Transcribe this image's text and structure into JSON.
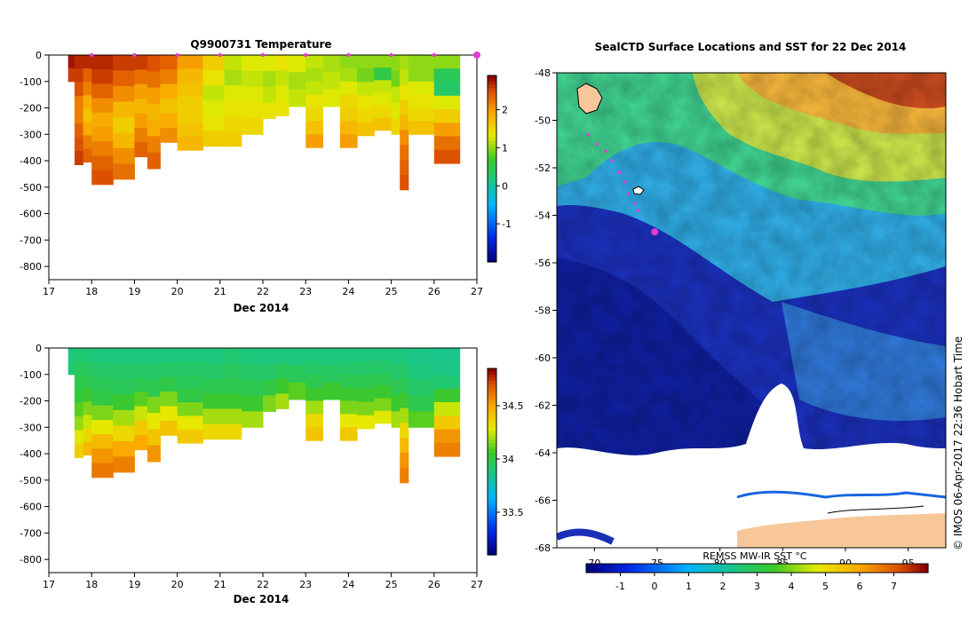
{
  "chart_data": [
    {
      "type": "heatmap",
      "title": "Q9900731  Temperature",
      "xlabel": "Dec 2014",
      "ylabel": "",
      "xlim": [
        17,
        27
      ],
      "ylim": [
        -850,
        0
      ],
      "x_ticks": [
        "17",
        "18",
        "19",
        "20",
        "21",
        "22",
        "23",
        "24",
        "25",
        "26",
        "27"
      ],
      "y_ticks": [
        "0",
        "-100",
        "-200",
        "-300",
        "-400",
        "-500",
        "-600",
        "-700",
        "-800"
      ],
      "colorbar_ticks": [
        "2",
        "1",
        "0",
        "-1"
      ],
      "colorbar_range": [
        -2,
        2.9
      ],
      "profile_markers": [
        18.0,
        19.0,
        20.0,
        21.0,
        22.0,
        23.0,
        24.0,
        25.0,
        26.0,
        27.0
      ],
      "profiles": [
        {
          "x": 17.45,
          "w": 0.15,
          "depth": 100,
          "values": [
            2.8,
            2.6
          ]
        },
        {
          "x": 17.6,
          "w": 0.2,
          "depth": 415,
          "values": [
            2.7,
            2.6,
            2.5,
            2.2,
            2.2,
            2.4,
            2.5,
            2.6
          ]
        },
        {
          "x": 17.8,
          "w": 0.2,
          "depth": 405,
          "values": [
            2.7,
            2.4,
            2.2,
            1.9,
            1.7,
            1.9,
            2.2,
            2.4
          ]
        },
        {
          "x": 18.0,
          "w": 0.5,
          "depth": 490,
          "values": [
            2.7,
            2.6,
            2.4,
            2.1,
            1.9,
            2.0,
            2.2,
            2.4,
            2.5
          ]
        },
        {
          "x": 18.5,
          "w": 0.5,
          "depth": 470,
          "values": [
            2.6,
            2.4,
            2.1,
            1.8,
            1.6,
            1.8,
            2.1,
            2.3
          ]
        },
        {
          "x": 19.0,
          "w": 0.3,
          "depth": 385,
          "values": [
            2.6,
            2.3,
            2.0,
            1.8,
            2.0,
            2.2,
            2.4
          ]
        },
        {
          "x": 19.3,
          "w": 0.3,
          "depth": 430,
          "values": [
            2.5,
            2.3,
            2.0,
            1.8,
            1.9,
            2.2,
            2.4
          ]
        },
        {
          "x": 19.6,
          "w": 0.4,
          "depth": 330,
          "values": [
            2.4,
            2.2,
            1.9,
            1.7,
            1.9,
            2.1
          ]
        },
        {
          "x": 20.0,
          "w": 0.6,
          "depth": 360,
          "values": [
            2.0,
            1.8,
            1.7,
            1.6,
            1.6,
            1.7,
            1.8
          ]
        },
        {
          "x": 20.6,
          "w": 0.5,
          "depth": 345,
          "values": [
            1.6,
            1.4,
            1.2,
            1.3,
            1.4,
            1.6
          ]
        },
        {
          "x": 21.1,
          "w": 0.4,
          "depth": 345,
          "values": [
            1.2,
            1.1,
            1.3,
            1.4,
            1.5,
            1.6
          ]
        },
        {
          "x": 21.5,
          "w": 0.5,
          "depth": 300,
          "values": [
            1.3,
            1.2,
            1.3,
            1.4,
            1.5
          ]
        },
        {
          "x": 22.0,
          "w": 0.3,
          "depth": 240,
          "values": [
            1.3,
            1.1,
            1.2,
            1.4
          ]
        },
        {
          "x": 22.3,
          "w": 0.3,
          "depth": 230,
          "values": [
            1.4,
            1.2,
            1.3,
            1.4
          ]
        },
        {
          "x": 22.6,
          "w": 0.4,
          "depth": 195,
          "values": [
            1.3,
            1.1,
            1.2
          ]
        },
        {
          "x": 23.0,
          "w": 0.4,
          "depth": 350,
          "values": [
            1.2,
            1.1,
            1.2,
            1.4,
            1.5,
            1.7,
            2.0
          ]
        },
        {
          "x": 23.4,
          "w": 0.4,
          "depth": 195,
          "values": [
            1.1,
            1.2,
            1.3
          ]
        },
        {
          "x": 23.8,
          "w": 0.4,
          "depth": 350,
          "values": [
            1.0,
            1.1,
            1.3,
            1.5,
            1.6,
            1.8,
            2.0
          ]
        },
        {
          "x": 24.2,
          "w": 0.4,
          "depth": 305,
          "values": [
            1.0,
            0.9,
            1.2,
            1.4,
            1.5,
            1.7
          ]
        },
        {
          "x": 24.6,
          "w": 0.4,
          "depth": 285,
          "values": [
            1.0,
            0.5,
            1.2,
            1.3,
            1.5,
            1.7
          ]
        },
        {
          "x": 25.0,
          "w": 0.2,
          "depth": 300,
          "values": [
            1.0,
            0.9,
            1.2,
            1.3,
            1.5
          ]
        },
        {
          "x": 25.2,
          "w": 0.2,
          "depth": 510,
          "values": [
            1.1,
            1.2,
            1.4,
            1.6,
            1.8,
            2.1,
            2.3,
            2.4,
            2.5
          ]
        },
        {
          "x": 25.4,
          "w": 0.6,
          "depth": 300,
          "values": [
            1.0,
            1.0,
            1.3,
            1.4,
            1.5,
            1.7
          ]
        },
        {
          "x": 26.0,
          "w": 0.6,
          "depth": 410,
          "values": [
            1.0,
            0.4,
            0.3,
            1.3,
            1.6,
            2.0,
            2.3,
            2.5
          ]
        }
      ]
    },
    {
      "type": "heatmap",
      "title": "",
      "xlabel": "Dec 2014",
      "ylabel": "",
      "xlim": [
        17,
        27
      ],
      "ylim": [
        -850,
        0
      ],
      "x_ticks": [
        "17",
        "18",
        "19",
        "20",
        "21",
        "22",
        "23",
        "24",
        "25",
        "26",
        "27"
      ],
      "y_ticks": [
        "0",
        "-100",
        "-200",
        "-300",
        "-400",
        "-500",
        "-600",
        "-700",
        "-800"
      ],
      "colorbar_ticks": [
        "34.5",
        "34",
        "33.5"
      ],
      "colorbar_range": [
        33.1,
        34.85
      ],
      "profiles": [
        {
          "x": 17.45,
          "w": 0.15,
          "depth": 100,
          "values": [
            33.88,
            33.9
          ]
        },
        {
          "x": 17.6,
          "w": 0.2,
          "depth": 415,
          "values": [
            33.9,
            33.95,
            33.98,
            34.02,
            34.1,
            34.18,
            34.28,
            34.38
          ]
        },
        {
          "x": 17.8,
          "w": 0.2,
          "depth": 405,
          "values": [
            33.9,
            33.94,
            33.98,
            34.05,
            34.15,
            34.25,
            34.35,
            34.45
          ]
        },
        {
          "x": 18.0,
          "w": 0.5,
          "depth": 490,
          "values": [
            33.88,
            33.92,
            33.96,
            34.0,
            34.15,
            34.3,
            34.45,
            34.55,
            34.62
          ]
        },
        {
          "x": 18.5,
          "w": 0.5,
          "depth": 470,
          "values": [
            33.88,
            33.92,
            33.96,
            34.05,
            34.2,
            34.35,
            34.5,
            34.6
          ]
        },
        {
          "x": 19.0,
          "w": 0.3,
          "depth": 385,
          "values": [
            33.88,
            33.92,
            33.97,
            34.1,
            34.25,
            34.4,
            34.5
          ]
        },
        {
          "x": 19.3,
          "w": 0.3,
          "depth": 430,
          "values": [
            33.88,
            33.93,
            33.98,
            34.15,
            34.3,
            34.42,
            34.55
          ]
        },
        {
          "x": 19.6,
          "w": 0.4,
          "depth": 330,
          "values": [
            33.88,
            33.93,
            33.99,
            34.15,
            34.3,
            34.42
          ]
        },
        {
          "x": 20.0,
          "w": 0.6,
          "depth": 360,
          "values": [
            33.88,
            33.92,
            33.95,
            34.0,
            34.15,
            34.3,
            34.4
          ]
        },
        {
          "x": 20.6,
          "w": 0.5,
          "depth": 345,
          "values": [
            33.88,
            33.92,
            33.97,
            34.05,
            34.2,
            34.35
          ]
        },
        {
          "x": 21.1,
          "w": 0.4,
          "depth": 345,
          "values": [
            33.9,
            33.94,
            33.98,
            34.05,
            34.2,
            34.35
          ]
        },
        {
          "x": 21.5,
          "w": 0.5,
          "depth": 300,
          "values": [
            33.88,
            33.92,
            33.97,
            34.05,
            34.2
          ]
        },
        {
          "x": 22.0,
          "w": 0.3,
          "depth": 240,
          "values": [
            33.88,
            33.92,
            34.0,
            34.15
          ]
        },
        {
          "x": 22.3,
          "w": 0.3,
          "depth": 230,
          "values": [
            33.88,
            33.95,
            34.05,
            34.2
          ]
        },
        {
          "x": 22.6,
          "w": 0.4,
          "depth": 195,
          "values": [
            33.88,
            33.95,
            34.1
          ]
        },
        {
          "x": 23.0,
          "w": 0.4,
          "depth": 350,
          "values": [
            33.88,
            33.92,
            33.97,
            34.05,
            34.2,
            34.35,
            34.42
          ]
        },
        {
          "x": 23.4,
          "w": 0.4,
          "depth": 195,
          "values": [
            33.88,
            33.94,
            34.05
          ]
        },
        {
          "x": 23.8,
          "w": 0.4,
          "depth": 350,
          "values": [
            33.88,
            33.92,
            33.97,
            34.05,
            34.15,
            34.3,
            34.4
          ]
        },
        {
          "x": 24.2,
          "w": 0.4,
          "depth": 305,
          "values": [
            33.88,
            33.92,
            33.97,
            34.05,
            34.15,
            34.3
          ]
        },
        {
          "x": 24.6,
          "w": 0.4,
          "depth": 285,
          "values": [
            33.88,
            33.92,
            33.97,
            34.05,
            34.15,
            34.28
          ]
        },
        {
          "x": 25.0,
          "w": 0.2,
          "depth": 300,
          "values": [
            33.88,
            33.92,
            33.97,
            34.05,
            34.2
          ]
        },
        {
          "x": 25.2,
          "w": 0.2,
          "depth": 510,
          "values": [
            33.88,
            33.92,
            33.97,
            34.05,
            34.2,
            34.35,
            34.45,
            34.55,
            34.6
          ]
        },
        {
          "x": 25.4,
          "w": 0.6,
          "depth": 300,
          "values": [
            33.86,
            33.88,
            33.92,
            33.98,
            34.1
          ]
        },
        {
          "x": 26.0,
          "w": 0.6,
          "depth": 410,
          "values": [
            33.85,
            33.86,
            33.9,
            34.05,
            34.25,
            34.4,
            34.55,
            34.6
          ]
        }
      ]
    },
    {
      "type": "heatmap",
      "title": "SealCTD Surface Locations and SST for 22 Dec 2014",
      "lon_range": [
        67,
        98
      ],
      "lat_range": [
        -68,
        -48
      ],
      "x_ticks": [
        "70",
        "75",
        "80",
        "85",
        "90",
        "95"
      ],
      "y_ticks": [
        "-48",
        "-50",
        "-52",
        "-54",
        "-56",
        "-58",
        "-60",
        "-62",
        "-64",
        "-66",
        "-68"
      ],
      "colorbar_label": "REMSS MW-IR SST °C",
      "colorbar_ticks": [
        "-1",
        "0",
        "1",
        "2",
        "3",
        "4",
        "5",
        "6",
        "7"
      ],
      "colorbar_range": [
        -2,
        8
      ],
      "track": [
        {
          "lon": 69.5,
          "lat": -50.6
        },
        {
          "lon": 70.2,
          "lat": -51.0
        },
        {
          "lon": 70.9,
          "lat": -51.3
        },
        {
          "lon": 71.4,
          "lat": -51.7
        },
        {
          "lon": 72.0,
          "lat": -52.2
        },
        {
          "lon": 72.4,
          "lat": -52.6
        },
        {
          "lon": 72.7,
          "lat": -53.1
        },
        {
          "lon": 73.2,
          "lat": -53.5
        },
        {
          "lon": 73.5,
          "lat": -53.8
        }
      ],
      "current_position": {
        "lon": 74.8,
        "lat": -54.7
      },
      "timestamp_label": "© IMOS 06-Apr-2017 22:36 Hobart Time"
    }
  ]
}
